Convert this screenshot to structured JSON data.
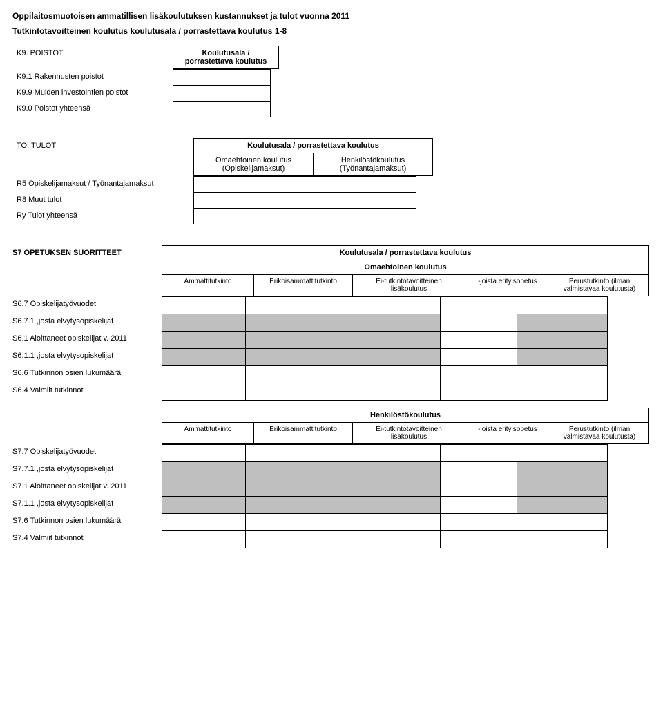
{
  "title": "Oppilaitosmuotoisen ammatillisen lisäkoulutuksen kustannukset ja tulot vuonna 2011",
  "subtitle": "Tutkintotavoitteinen koulutus koulutusala / porrastettava koulutus 1-8",
  "k9": {
    "title": "K9. POISTOT",
    "head": "Koulutusala / porrastettava koulutus",
    "rows": [
      "K9.1 Rakennusten poistot",
      "K9.9 Muiden investointien poistot",
      "K9.0 Poistot yhteensä"
    ]
  },
  "to": {
    "title": "TO. TULOT",
    "head": "Koulutusala / porrastettava koulutus",
    "sub1": "Omaehtoinen koulutus (Opiskelijamaksut)",
    "sub2": "Henkilöstökoulutus (Työnantajamaksut)",
    "rows": [
      "R5 Opiskelijamaksut / Työnantajamaksut",
      "R8 Muut tulot",
      "Ry Tulot yhteensä"
    ]
  },
  "s7head": {
    "title": "S7 OPETUKSEN SUORITTEET",
    "head": "Koulutusala / porrastettava koulutus",
    "rowhead_a": "Omaehtoinen koulutus",
    "rowhead_b": "Henkilöstökoulutus",
    "cols": {
      "a": "Ammattitutkinto",
      "b": "Erikoisammattitutkinto",
      "c": "Ei-tutkintotavoitteinen lisäkoulutus",
      "d": "-joista erityisopetus",
      "e": "Perustutkinto (ilman valmistavaa koulutusta)"
    }
  },
  "s6rows": [
    "S6.7 Opiskelijatyövuodet",
    "S6.7.1 ,josta elvytysopiskelijat",
    "S6.1 Aloittaneet opiskelijat v. 2011",
    "S6.1.1 ,josta elvytysopiskelijat",
    "S6.6 Tutkinnon osien lukumäärä",
    "S6.4 Valmiit tutkinnot"
  ],
  "s7rows": [
    "S7.7 Opiskelijatyövuodet",
    "S7.7.1 ,josta elvytysopiskelijat",
    "S7.1 Aloittaneet opiskelijat v. 2011",
    "S7.1.1 ,josta elvytysopiskelijat",
    "S7.6 Tutkinnon osien lukumäärä",
    "S7.4 Valmiit tutkinnot"
  ],
  "greyRowsA": [
    1,
    2,
    3
  ],
  "greyRowsB": [
    1,
    2,
    3
  ]
}
